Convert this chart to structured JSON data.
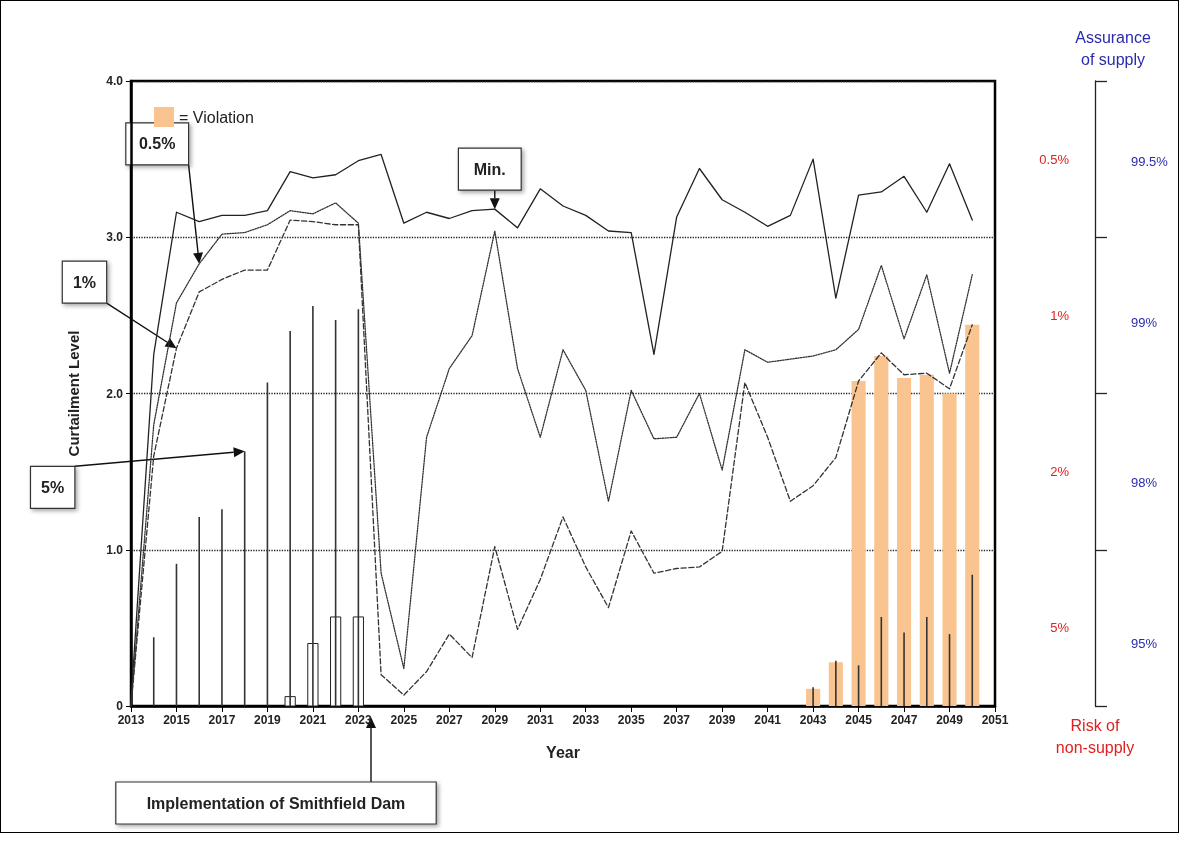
{
  "chart_data": {
    "type": "line",
    "xlabel": "Year",
    "ylabel": "Curtailment Level",
    "y2label": "Risk of non-supply",
    "xlim": [
      2013,
      2051
    ],
    "xticks": [
      2013,
      2015,
      2017,
      2019,
      2021,
      2023,
      2025,
      2027,
      2029,
      2031,
      2033,
      2035,
      2037,
      2039,
      2041,
      2043,
      2045,
      2047,
      2049,
      2051
    ],
    "ylim": [
      0,
      4
    ],
    "yticks": [
      0,
      {
        "value": 1,
        "label": "1.0"
      },
      {
        "value": 2,
        "label": "2.0"
      },
      {
        "value": 3,
        "label": "3.0"
      },
      {
        "value": 4,
        "label": "4.0"
      }
    ],
    "y2_categories": [
      "0.5%",
      "1%",
      "2%",
      "5%"
    ],
    "grid": "y",
    "legend": "top left",
    "marker": "none",
    "annotations": [
      "Implementation of Smithfield Dam",
      "Assurance of supply",
      "99.5%",
      "99%",
      "98%",
      "95%"
    ],
    "series": [
      {
        "name": "Min.",
        "line_style": "solid",
        "color": "#222222",
        "x": [
          2013,
          2014,
          2015,
          2016,
          2017,
          2018,
          2019,
          2020,
          2021,
          2022,
          2023,
          2024,
          2025,
          2026,
          2027,
          2028,
          2029,
          2030,
          2031,
          2032,
          2033,
          2034,
          2035,
          2036,
          2037,
          2038,
          2039,
          2040,
          2041,
          2042,
          2043,
          2044,
          2045,
          2046,
          2047,
          2048,
          2049,
          2050
        ],
        "values": [
          0.03,
          2.25,
          3.16,
          3.1,
          3.14,
          3.14,
          3.17,
          3.42,
          3.38,
          3.4,
          3.49,
          3.53,
          3.09,
          3.16,
          3.12,
          3.17,
          3.18,
          3.06,
          3.31,
          3.2,
          3.14,
          3.04,
          3.03,
          2.25,
          3.13,
          3.44,
          3.24,
          3.16,
          3.07,
          3.14,
          3.5,
          2.61,
          3.27,
          3.29,
          3.39,
          3.16,
          3.47,
          3.11
        ]
      },
      {
        "name": "0.5%",
        "line_style": "dotted",
        "color": "#333333",
        "x": [
          2013,
          2014,
          2015,
          2016,
          2017,
          2018,
          2019,
          2020,
          2021,
          2022,
          2023,
          2024,
          2025,
          2026,
          2027,
          2028,
          2029,
          2030,
          2031,
          2032,
          2033,
          2034,
          2035,
          2036,
          2037,
          2038,
          2039,
          2040,
          2041,
          2042,
          2043,
          2044,
          2045,
          2046,
          2047,
          2048,
          2049,
          2050
        ],
        "values": [
          0,
          1.8,
          2.58,
          2.83,
          3.02,
          3.03,
          3.08,
          3.17,
          3.15,
          3.22,
          3.09,
          0.85,
          0.24,
          1.72,
          2.16,
          2.37,
          3.04,
          2.16,
          1.72,
          2.28,
          2.02,
          1.31,
          2.02,
          1.71,
          1.72,
          2.0,
          1.51,
          2.28,
          2.2,
          2.22,
          2.24,
          2.28,
          2.41,
          2.82,
          2.35,
          2.76,
          2.13,
          2.76
        ]
      },
      {
        "name": "1%",
        "line_style": "dashed",
        "color": "#333333",
        "x": [
          2013,
          2014,
          2015,
          2016,
          2017,
          2018,
          2019,
          2020,
          2021,
          2022,
          2023,
          2024,
          2025,
          2026,
          2027,
          2028,
          2029,
          2030,
          2031,
          2032,
          2033,
          2034,
          2035,
          2036,
          2037,
          2038,
          2039,
          2040,
          2041,
          2042,
          2043,
          2044,
          2045,
          2046,
          2047,
          2048,
          2049,
          2050
        ],
        "values": [
          0,
          1.6,
          2.29,
          2.65,
          2.73,
          2.79,
          2.79,
          3.11,
          3.1,
          3.08,
          3.08,
          0.2,
          0.07,
          0.22,
          0.46,
          0.31,
          1.02,
          0.49,
          0.81,
          1.21,
          0.89,
          0.63,
          1.12,
          0.85,
          0.88,
          0.89,
          0.99,
          2.07,
          1.72,
          1.31,
          1.41,
          1.59,
          2.08,
          2.26,
          2.12,
          2.13,
          2.03,
          2.44
        ]
      },
      {
        "name": "5%",
        "type": "bar",
        "color": "#333333",
        "x": [
          2014,
          2015,
          2016,
          2017,
          2018,
          2019,
          2020,
          2021,
          2022,
          2023,
          2043,
          2044,
          2045,
          2046,
          2047,
          2048,
          2049,
          2050
        ],
        "values": [
          0.44,
          0.91,
          1.21,
          1.26,
          1.63,
          2.07,
          2.4,
          2.56,
          2.47,
          2.54,
          0.12,
          0.29,
          0.26,
          0.57,
          0.47,
          0.57,
          0.46,
          0.84
        ]
      },
      {
        "type": "bar",
        "color": "#ffffff",
        "x": [
          2020,
          2021,
          2022,
          2023
        ],
        "values": [
          0.06,
          0.4,
          0.57,
          0.57
        ]
      },
      {
        "name": "= Violation",
        "type": "bar",
        "color": "#f9c48f",
        "x": [
          2043,
          2044,
          2045,
          2046,
          2047,
          2048,
          2049,
          2050
        ],
        "values": [
          0.11,
          0.28,
          2.08,
          2.24,
          2.1,
          2.12,
          2.0,
          2.44
        ]
      }
    ]
  }
}
